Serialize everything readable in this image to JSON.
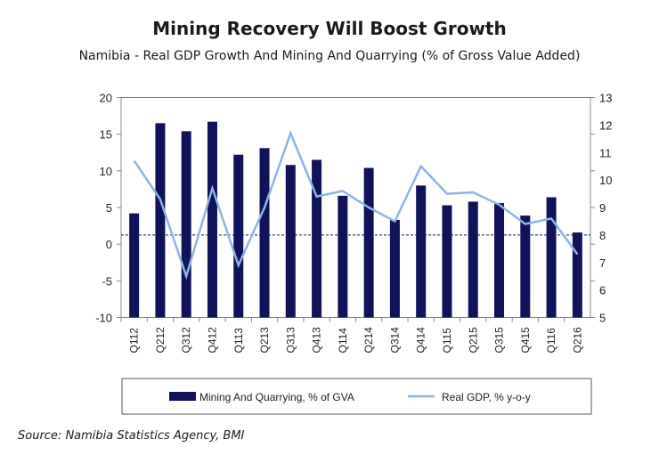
{
  "chart_data": {
    "type": "bar+line",
    "title": "Mining Recovery Will Boost Growth",
    "subtitle": "Namibia - Real GDP Growth And Mining And Quarrying (% of Gross Value Added)",
    "categories": [
      "Q112",
      "Q212",
      "Q312",
      "Q412",
      "Q113",
      "Q213",
      "Q313",
      "Q413",
      "Q114",
      "Q214",
      "Q314",
      "Q414",
      "Q115",
      "Q215",
      "Q315",
      "Q415",
      "Q116",
      "Q216"
    ],
    "series": [
      {
        "name": "Mining And Quarrying, % of GVA",
        "type": "bar",
        "axis": "left",
        "color": "#10135a",
        "values": [
          4.2,
          16.5,
          15.4,
          16.7,
          12.2,
          13.1,
          10.8,
          11.5,
          6.6,
          10.4,
          3.3,
          8.0,
          5.3,
          5.8,
          5.6,
          3.9,
          6.4,
          1.6
        ]
      },
      {
        "name": "Real GDP, % y-o-y",
        "type": "line",
        "axis": "right",
        "color": "#8db4e8",
        "values": [
          10.7,
          9.3,
          6.5,
          9.7,
          6.9,
          9.0,
          11.7,
          9.4,
          9.6,
          9.0,
          8.5,
          10.5,
          9.5,
          9.55,
          9.1,
          8.4,
          8.6,
          7.3
        ]
      }
    ],
    "left_axis": {
      "min": -10,
      "max": 20,
      "ticks": [
        -10,
        -5,
        0,
        5,
        10,
        15,
        20
      ]
    },
    "right_axis": {
      "min": 5,
      "max": 13,
      "ticks": [
        5,
        6,
        7,
        8,
        9,
        10,
        11,
        12,
        13
      ]
    },
    "reference_line": {
      "axis": "right",
      "value": 8,
      "style": "dashed",
      "color": "#10135a"
    },
    "legend_placement": "bottom",
    "grid": false,
    "source": "Source: Namibia Statistics Agency, BMI"
  }
}
